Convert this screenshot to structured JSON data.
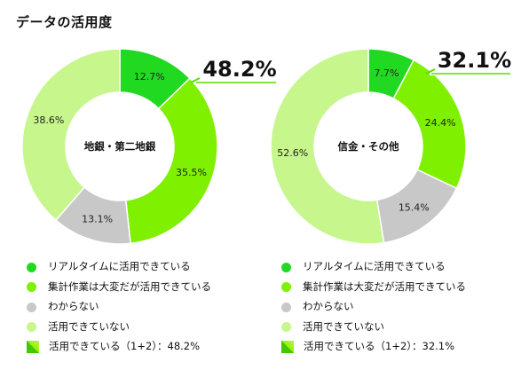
{
  "title": "データの活用度",
  "categories": [
    "リアルタイムに活用できている",
    "集計作業は大変だが活用できている",
    "わからない",
    "活用できていない"
  ],
  "colors": {
    "realtime": "#22d922",
    "effort": "#7ff000",
    "unknown": "#c8c8c8",
    "not_used": "#c6f68c",
    "callout": "#55e000"
  },
  "chart_data": [
    {
      "type": "pie",
      "title": "地銀・第二地銀",
      "categories": [
        "リアルタイムに活用できている",
        "集計作業は大変だが活用できている",
        "わからない",
        "活用できていない"
      ],
      "values": [
        12.7,
        35.5,
        13.1,
        38.6
      ],
      "value_labels": [
        "12.7%",
        "35.5%",
        "13.1%",
        "38.6%"
      ],
      "total_value": 48.2,
      "total_label": "48.2%",
      "total_legend": "活用できている（1+2）：48.2%"
    },
    {
      "type": "pie",
      "title": "信金・その他",
      "categories": [
        "リアルタイムに活用できている",
        "集計作業は大変だが活用できている",
        "わからない",
        "活用できていない"
      ],
      "values": [
        7.7,
        24.4,
        15.4,
        52.6
      ],
      "value_labels": [
        "7.7%",
        "24.4%",
        "15.4%",
        "52.6%"
      ],
      "total_value": 32.1,
      "total_label": "32.1%",
      "total_legend": "活用できている（1+2）：32.1%"
    }
  ]
}
